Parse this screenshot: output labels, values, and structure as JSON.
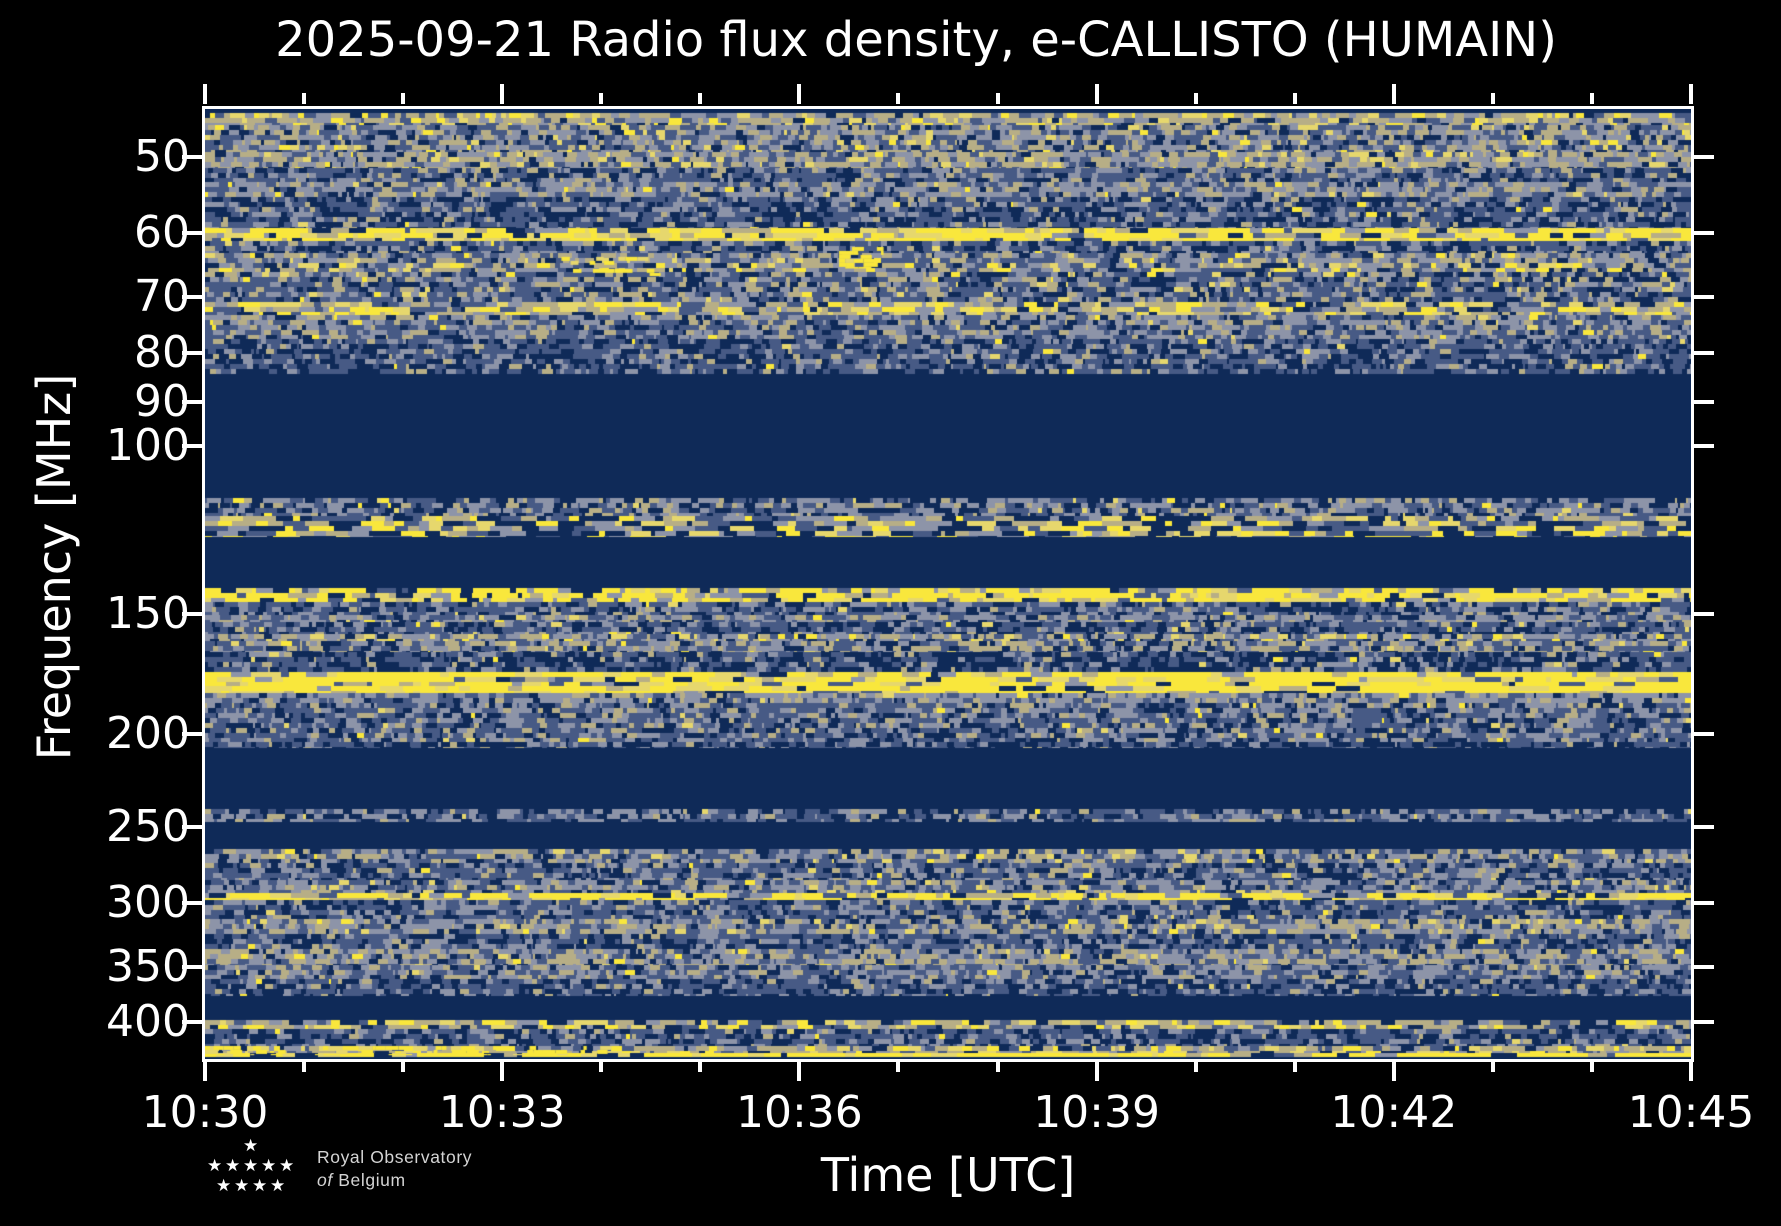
{
  "title": "2025-09-21 Radio flux density, e-CALLISTO (HUMAIN)",
  "chart_data": {
    "type": "heatmap",
    "title": "2025-09-21 Radio flux density, e-CALLISTO (HUMAIN)",
    "xlabel": "Time [UTC]",
    "ylabel": "Frequency [MHz]",
    "x_ticks": [
      "10:30",
      "10:33",
      "10:36",
      "10:39",
      "10:42",
      "10:45"
    ],
    "x_span_min": 15,
    "x_major_interval_min": 3,
    "x_minor_interval_min": 1,
    "y_scale": "log",
    "y_ticks_mhz": [
      50,
      60,
      70,
      80,
      90,
      100,
      150,
      200,
      250,
      300,
      350,
      400
    ],
    "f_min_mhz": 44.5,
    "f_max_mhz": 437,
    "legend": "none",
    "grid": "off",
    "colormap": {
      "navy": "#0f2a58",
      "slate": "#475a85",
      "gray": "#8d94a8",
      "tan": "#b7ae86",
      "pale": "#e6d76d",
      "yellow": "#f9e73c"
    },
    "bands": [
      {
        "f0": 44.5,
        "f1": 44.9,
        "kind": "solid"
      },
      {
        "f0": 44.9,
        "f1": 46.3,
        "w": [
          0.06,
          0.14,
          0.2,
          0.38,
          0.12,
          0.1
        ],
        "run": 1.2
      },
      {
        "f0": 46.3,
        "f1": 49.4,
        "w": [
          0.14,
          0.32,
          0.28,
          0.2,
          0.04,
          0.02
        ],
        "run": 1
      },
      {
        "f0": 49.4,
        "f1": 51.3,
        "w": [
          0.08,
          0.18,
          0.3,
          0.36,
          0.05,
          0.03
        ],
        "run": 1
      },
      {
        "f0": 51.3,
        "f1": 53.1,
        "w": [
          0.28,
          0.42,
          0.2,
          0.1,
          0.0,
          0.0
        ],
        "run": 1
      },
      {
        "f0": 53.1,
        "f1": 55.0,
        "w": [
          0.1,
          0.26,
          0.42,
          0.2,
          0.01,
          0.01
        ],
        "run": 1
      },
      {
        "f0": 55.0,
        "f1": 59.3,
        "w": [
          0.34,
          0.4,
          0.19,
          0.06,
          0.005,
          0.005
        ],
        "run": 1
      },
      {
        "f0": 59.3,
        "f1": 61.1,
        "w": [
          0.08,
          0.05,
          0.06,
          0.12,
          0.22,
          0.47
        ],
        "run": 2
      },
      {
        "f0": 61.1,
        "f1": 62.9,
        "w": [
          0.3,
          0.44,
          0.19,
          0.06,
          0.005,
          0.005
        ],
        "run": 1
      },
      {
        "f0": 62.9,
        "f1": 64.4,
        "w": [
          0.1,
          0.26,
          0.34,
          0.24,
          0.04,
          0.02
        ],
        "run": 1
      },
      {
        "f0": 64.4,
        "f1": 65.9,
        "w": [
          0.12,
          0.2,
          0.22,
          0.26,
          0.12,
          0.08
        ],
        "run": 1.3
      },
      {
        "f0": 65.9,
        "f1": 70.7,
        "w": [
          0.24,
          0.38,
          0.21,
          0.14,
          0.02,
          0.01
        ],
        "run": 1
      },
      {
        "f0": 70.7,
        "f1": 73.1,
        "w": [
          0.08,
          0.14,
          0.16,
          0.28,
          0.18,
          0.16
        ],
        "run": 1.6
      },
      {
        "f0": 73.1,
        "f1": 77.4,
        "w": [
          0.14,
          0.34,
          0.34,
          0.16,
          0.01,
          0.01
        ],
        "run": 1
      },
      {
        "f0": 77.4,
        "f1": 84.1,
        "w": [
          0.32,
          0.4,
          0.2,
          0.07,
          0.005,
          0.005
        ],
        "run": 1
      },
      {
        "f0": 84.1,
        "f1": 113.3,
        "kind": "solid"
      },
      {
        "f0": 113.3,
        "f1": 118.3,
        "w": [
          0.28,
          0.3,
          0.3,
          0.1,
          0.01,
          0.01
        ],
        "run": 1
      },
      {
        "f0": 118.3,
        "f1": 124.5,
        "w": [
          0.26,
          0.2,
          0.2,
          0.12,
          0.1,
          0.12
        ],
        "run": 2.2
      },
      {
        "f0": 124.5,
        "f1": 140.7,
        "kind": "solid"
      },
      {
        "f0": 140.7,
        "f1": 145.5,
        "w": [
          0.12,
          0.06,
          0.1,
          0.12,
          0.15,
          0.45
        ],
        "run": 1.8
      },
      {
        "f0": 145.5,
        "f1": 150.1,
        "w": [
          0.28,
          0.4,
          0.26,
          0.05,
          0.005,
          0.005
        ],
        "run": 1
      },
      {
        "f0": 150.1,
        "f1": 152.9,
        "w": [
          0.12,
          0.3,
          0.44,
          0.12,
          0.01,
          0.01
        ],
        "run": 1
      },
      {
        "f0": 152.9,
        "f1": 157.3,
        "w": [
          0.32,
          0.44,
          0.16,
          0.05,
          0.02,
          0.01
        ],
        "run": 1
      },
      {
        "f0": 157.3,
        "f1": 159.9,
        "w": [
          0.1,
          0.24,
          0.34,
          0.18,
          0.08,
          0.06
        ],
        "run": 1
      },
      {
        "f0": 159.9,
        "f1": 164.1,
        "w": [
          0.14,
          0.26,
          0.3,
          0.26,
          0.02,
          0.02
        ],
        "run": 1
      },
      {
        "f0": 164.1,
        "f1": 172.5,
        "w": [
          0.42,
          0.36,
          0.16,
          0.05,
          0.005,
          0.005
        ],
        "run": 1
      },
      {
        "f0": 172.5,
        "f1": 178.4,
        "w": [
          0.08,
          0.06,
          0.06,
          0.1,
          0.18,
          0.52
        ],
        "run": 2.4
      },
      {
        "f0": 178.4,
        "f1": 181.4,
        "w": [
          0.06,
          0.03,
          0.03,
          0.06,
          0.14,
          0.68
        ],
        "run": 3
      },
      {
        "f0": 181.4,
        "f1": 185.8,
        "w": [
          0.1,
          0.28,
          0.46,
          0.14,
          0.01,
          0.01
        ],
        "run": 1
      },
      {
        "f0": 185.8,
        "f1": 203.9,
        "w": [
          0.22,
          0.38,
          0.28,
          0.1,
          0.01,
          0.01
        ],
        "run": 1
      },
      {
        "f0": 203.9,
        "f1": 206.8,
        "w": [
          0.44,
          0.36,
          0.16,
          0.04,
          0.0,
          0.0
        ],
        "run": 1
      },
      {
        "f0": 206.8,
        "f1": 239.7,
        "kind": "solid"
      },
      {
        "f0": 239.7,
        "f1": 247.3,
        "w": [
          0.26,
          0.34,
          0.32,
          0.07,
          0.005,
          0.005
        ],
        "run": 1
      },
      {
        "f0": 247.3,
        "f1": 263.5,
        "kind": "solid"
      },
      {
        "f0": 263.5,
        "f1": 273.0,
        "w": [
          0.12,
          0.28,
          0.3,
          0.24,
          0.04,
          0.02
        ],
        "run": 1
      },
      {
        "f0": 273.0,
        "f1": 284.3,
        "w": [
          0.28,
          0.42,
          0.22,
          0.07,
          0.005,
          0.005
        ],
        "run": 1
      },
      {
        "f0": 284.3,
        "f1": 293.3,
        "w": [
          0.14,
          0.3,
          0.38,
          0.14,
          0.03,
          0.01
        ],
        "run": 1
      },
      {
        "f0": 293.3,
        "f1": 298.1,
        "w": [
          0.09,
          0.05,
          0.08,
          0.12,
          0.16,
          0.5
        ],
        "run": 2
      },
      {
        "f0": 298.1,
        "f1": 311.9,
        "w": [
          0.28,
          0.4,
          0.25,
          0.06,
          0.005,
          0.005
        ],
        "run": 1
      },
      {
        "f0": 311.9,
        "f1": 323.9,
        "w": [
          0.1,
          0.24,
          0.3,
          0.3,
          0.04,
          0.02
        ],
        "run": 1
      },
      {
        "f0": 323.9,
        "f1": 335.1,
        "w": [
          0.28,
          0.44,
          0.21,
          0.06,
          0.005,
          0.005
        ],
        "run": 1
      },
      {
        "f0": 335.1,
        "f1": 348.2,
        "w": [
          0.1,
          0.26,
          0.34,
          0.26,
          0.02,
          0.02
        ],
        "run": 1
      },
      {
        "f0": 348.2,
        "f1": 360.9,
        "w": [
          0.16,
          0.34,
          0.38,
          0.11,
          0.005,
          0.005
        ],
        "run": 1
      },
      {
        "f0": 360.9,
        "f1": 375.9,
        "w": [
          0.36,
          0.4,
          0.18,
          0.05,
          0.005,
          0.005
        ],
        "run": 1
      },
      {
        "f0": 375.9,
        "f1": 397.9,
        "kind": "solid"
      },
      {
        "f0": 397.9,
        "f1": 406.5,
        "w": [
          0.18,
          0.14,
          0.16,
          0.26,
          0.12,
          0.14
        ],
        "run": 1.6
      },
      {
        "f0": 406.5,
        "f1": 423.2,
        "w": [
          0.36,
          0.4,
          0.18,
          0.05,
          0.005,
          0.005
        ],
        "run": 1
      },
      {
        "f0": 423.2,
        "f1": 431.1,
        "w": [
          0.1,
          0.14,
          0.2,
          0.32,
          0.12,
          0.12
        ],
        "run": 1.4
      },
      {
        "f0": 431.1,
        "f1": 435.1,
        "w": [
          0.08,
          0.04,
          0.06,
          0.1,
          0.18,
          0.54
        ],
        "run": 2.4
      },
      {
        "f0": 435.1,
        "f1": 437.0,
        "kind": "solid"
      }
    ],
    "events": [
      {
        "t0": 6.4,
        "t1": 6.85,
        "f0": 62.0,
        "f1": 65.3,
        "density": 0.55
      },
      {
        "t0": 3.4,
        "t1": 4.6,
        "f0": 63.5,
        "f1": 66.5,
        "density": 0.28
      },
      {
        "t0": 0.0,
        "t1": 4.2,
        "f0": 423.5,
        "f1": 433.0,
        "density": 0.35
      }
    ]
  },
  "footer": {
    "line1": "Royal Observatory",
    "line2_of": "of",
    "line2_rest": "Belgium"
  }
}
